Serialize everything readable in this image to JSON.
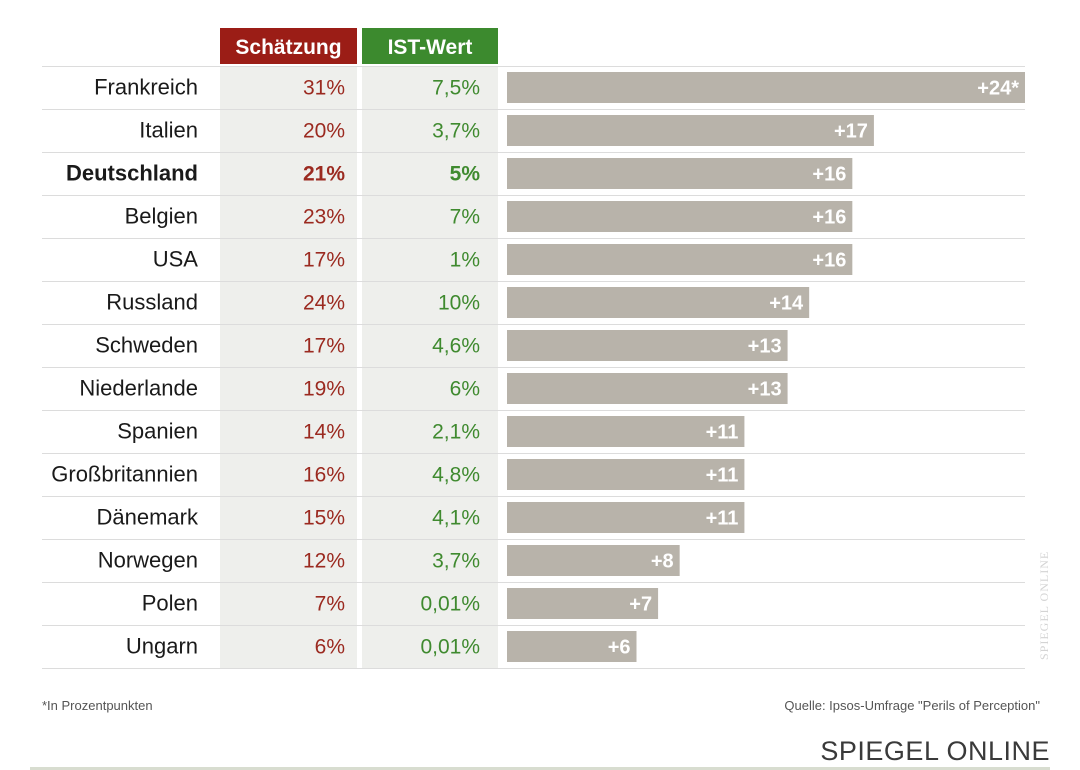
{
  "chart_data": {
    "type": "bar",
    "headers": {
      "estimate": "Schätzung",
      "actual": "IST-Wert"
    },
    "colors": {
      "estimate_header": "#9b1d16",
      "actual_header": "#3c8a2e",
      "bar": "#b8b3aa",
      "column_bg": "#eeefec"
    },
    "rows": [
      {
        "country": "Frankreich",
        "estimate": "31%",
        "actual": "7,5%",
        "diff": 24,
        "diff_label": "+24*",
        "highlight": false
      },
      {
        "country": "Italien",
        "estimate": "20%",
        "actual": "3,7%",
        "diff": 17,
        "diff_label": "+17",
        "highlight": false
      },
      {
        "country": "Deutschland",
        "estimate": "21%",
        "actual": "5%",
        "diff": 16,
        "diff_label": "+16",
        "highlight": true
      },
      {
        "country": "Belgien",
        "estimate": "23%",
        "actual": "7%",
        "diff": 16,
        "diff_label": "+16",
        "highlight": false
      },
      {
        "country": "USA",
        "estimate": "17%",
        "actual": "1%",
        "diff": 16,
        "diff_label": "+16",
        "highlight": false
      },
      {
        "country": "Russland",
        "estimate": "24%",
        "actual": "10%",
        "diff": 14,
        "diff_label": "+14",
        "highlight": false
      },
      {
        "country": "Schweden",
        "estimate": "17%",
        "actual": "4,6%",
        "diff": 13,
        "diff_label": "+13",
        "highlight": false
      },
      {
        "country": "Niederlande",
        "estimate": "19%",
        "actual": "6%",
        "diff": 13,
        "diff_label": "+13",
        "highlight": false
      },
      {
        "country": "Spanien",
        "estimate": "14%",
        "actual": "2,1%",
        "diff": 11,
        "diff_label": "+11",
        "highlight": false
      },
      {
        "country": "Großbritannien",
        "estimate": "16%",
        "actual": "4,8%",
        "diff": 11,
        "diff_label": "+11",
        "highlight": false
      },
      {
        "country": "Dänemark",
        "estimate": "15%",
        "actual": "4,1%",
        "diff": 11,
        "diff_label": "+11",
        "highlight": false
      },
      {
        "country": "Norwegen",
        "estimate": "12%",
        "actual": "3,7%",
        "diff": 8,
        "diff_label": "+8",
        "highlight": false
      },
      {
        "country": "Polen",
        "estimate": "7%",
        "actual": "0,01%",
        "diff": 7,
        "diff_label": "+7",
        "highlight": false
      },
      {
        "country": "Ungarn",
        "estimate": "6%",
        "actual": "0,01%",
        "diff": 6,
        "diff_label": "+6",
        "highlight": false
      }
    ],
    "xlim": [
      0,
      24
    ],
    "footnote": "*In Prozentpunkten",
    "source": "Quelle: Ipsos-Umfrage \"Perils of Perception\"",
    "watermark": "SPIEGEL ONLINE"
  },
  "footer": {
    "brand": "SPIEGEL ONLINE"
  }
}
